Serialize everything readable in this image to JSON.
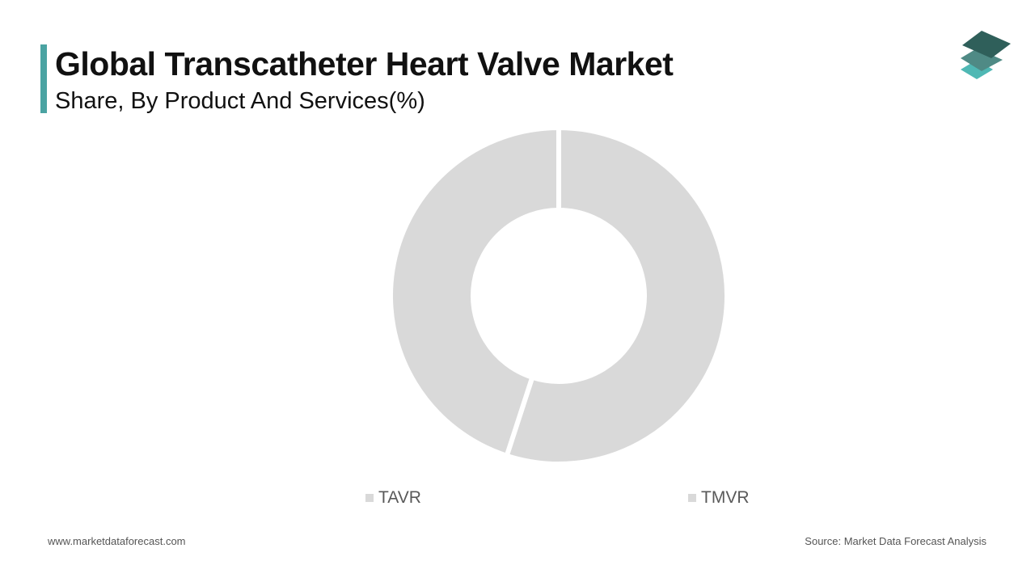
{
  "header": {
    "title": "Global Transcatheter Heart Valve Market",
    "subtitle": "Share, By Product And Services(%)",
    "accent_color": "#4aa3a2"
  },
  "logo": {
    "icon": "stacked-layers-logo",
    "colors": [
      "#2f5f5a",
      "#4f8a85",
      "#4fb8b4"
    ]
  },
  "chart_data": {
    "type": "pie",
    "variant": "donut",
    "title": "",
    "categories": [
      "TAVR",
      "TMVR"
    ],
    "values": [
      55,
      45
    ],
    "colors": [
      "#d9d9d9",
      "#d9d9d9"
    ],
    "legend_position": "bottom"
  },
  "footer": {
    "website": "www.marketdataforecast.com",
    "source": "Source: Market Data Forecast Analysis"
  }
}
